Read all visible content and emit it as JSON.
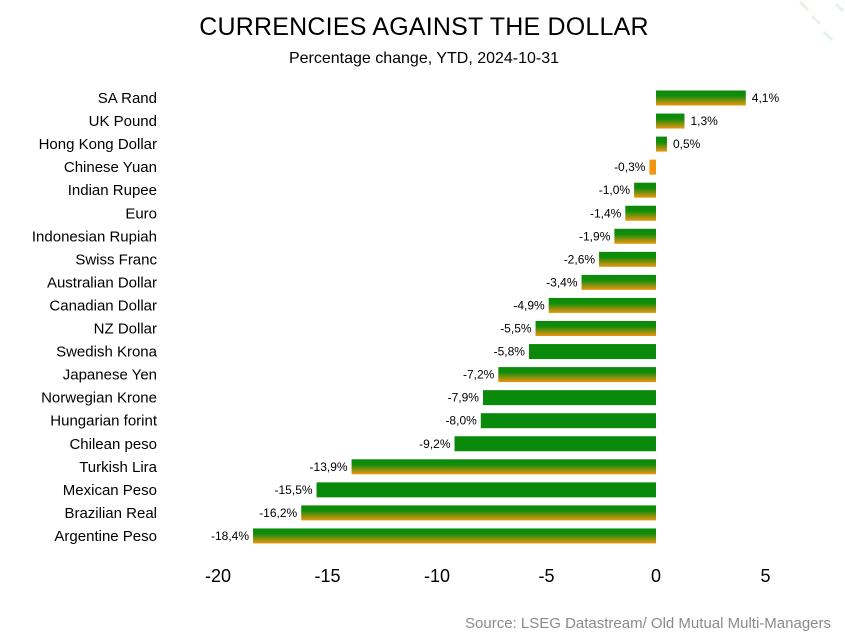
{
  "chart_data": {
    "type": "bar",
    "orientation": "horizontal",
    "title": "CURRENCIES AGAINST THE DOLLAR",
    "subtitle": "Percentage change, YTD, 2024-10-31",
    "source": "Source: LSEG Datastream/ Old Mutual Multi-Managers",
    "xlabel": "",
    "ylabel": "",
    "xlim": [
      -20,
      5
    ],
    "xticks": [
      -20,
      -15,
      -10,
      -5,
      0,
      5
    ],
    "xtick_labels": [
      "-20",
      "-15",
      "-10",
      "-5",
      "0",
      "5"
    ],
    "categories": [
      "SA Rand",
      "UK Pound",
      "Hong Kong Dollar",
      "Chinese Yuan",
      "Indian Rupee",
      "Euro",
      "Indonesian Rupiah",
      "Swiss Franc",
      "Australian Dollar",
      "Canadian Dollar",
      "NZ Dollar",
      "Swedish Krona",
      "Japanese Yen",
      "Norwegian Krone",
      "Hungarian forint",
      "Chilean peso",
      "Turkish Lira",
      "Mexican Peso",
      "Brazilian Real",
      "Argentine Peso"
    ],
    "values": [
      4.1,
      1.3,
      0.5,
      -0.3,
      -1.0,
      -1.4,
      -1.9,
      -2.6,
      -3.4,
      -4.9,
      -5.5,
      -5.8,
      -7.2,
      -7.9,
      -8.0,
      -9.2,
      -13.9,
      -15.5,
      -16.2,
      -18.4
    ],
    "value_labels": [
      "4,1%",
      "1,3%",
      "0,5%",
      "-0,3%",
      "-1,0%",
      "-1,4%",
      "-1,9%",
      "-2,6%",
      "-3,4%",
      "-4,9%",
      "-5,5%",
      "-5,8%",
      "-7,2%",
      "-7,9%",
      "-8,0%",
      "-9,2%",
      "-13,9%",
      "-15,5%",
      "-16,2%",
      "-18,4%"
    ],
    "bar_style": [
      "gradient",
      "gradient",
      "gradient",
      "orange",
      "gradient",
      "gradient",
      "gradient",
      "gradient",
      "gradient",
      "gradient",
      "gradient",
      "green",
      "gradient",
      "green",
      "green",
      "green",
      "gradient",
      "green",
      "gradient",
      "gradient"
    ],
    "colors": {
      "green": "#0a8a0a",
      "orange": "#f0960f"
    }
  }
}
